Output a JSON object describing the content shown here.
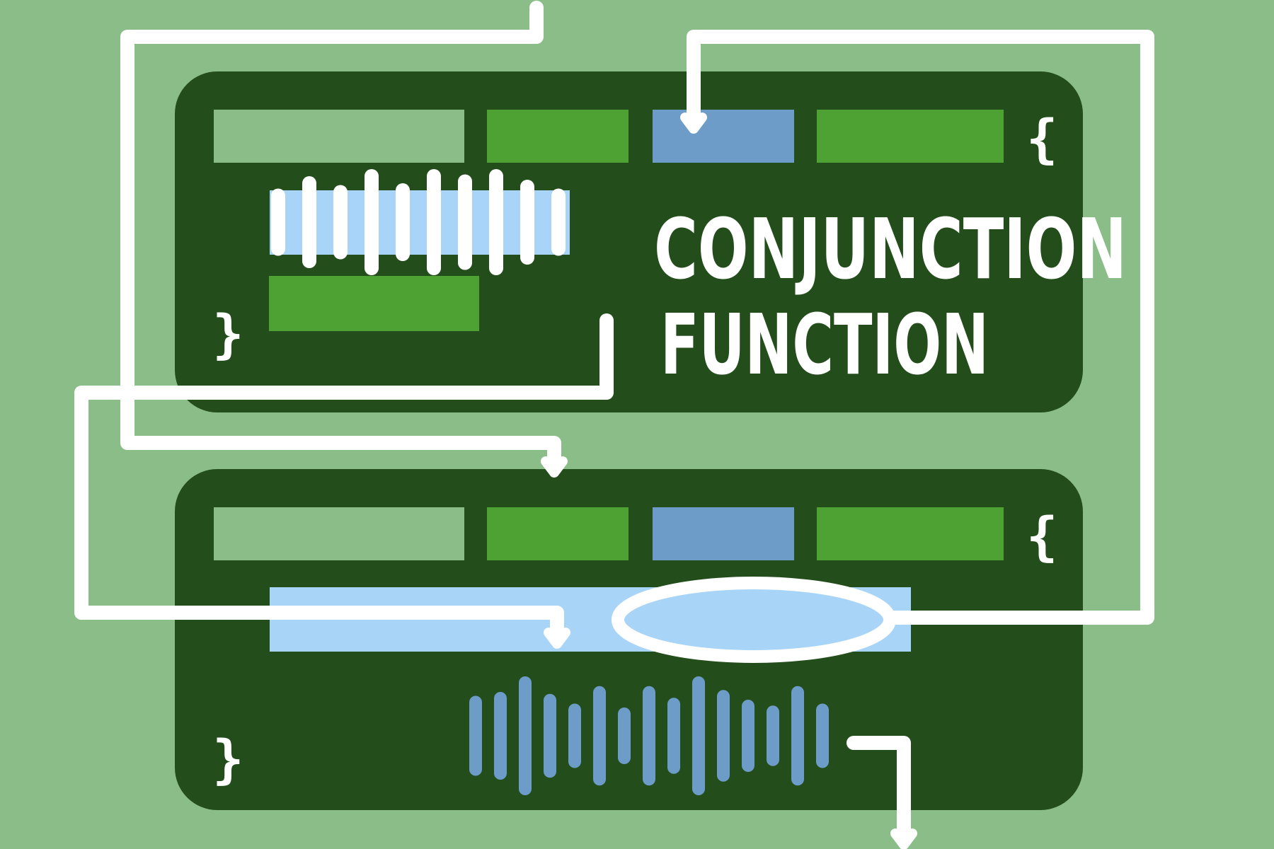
{
  "title": {
    "line1": "CONJUNCTION",
    "line2": "FUNCTION"
  },
  "braces": {
    "open": "{",
    "close": "}"
  },
  "colors": {
    "background": "#8bbd89",
    "panel": "#234d1b",
    "pale_green": "#8bbd89",
    "bright_green": "#4ea234",
    "steel_blue": "#6d9cc8",
    "light_blue": "#a8d4f8",
    "white": "#ffffff"
  },
  "waveform": {
    "white_bar_levels": [
      0.35,
      0.7,
      0.45,
      0.9,
      0.5,
      0.9,
      0.75,
      0.9,
      0.6,
      0.35
    ],
    "blue_bar_levels": [
      0.5,
      0.6,
      1.0,
      0.55,
      0.3,
      0.75,
      0.2,
      0.75,
      0.45,
      1.0,
      0.65,
      0.4,
      0.25,
      0.75,
      0.3
    ]
  },
  "icons": [
    "open-brace-icon",
    "close-brace-icon",
    "arrow-down-icon",
    "ellipse-highlight-icon"
  ]
}
